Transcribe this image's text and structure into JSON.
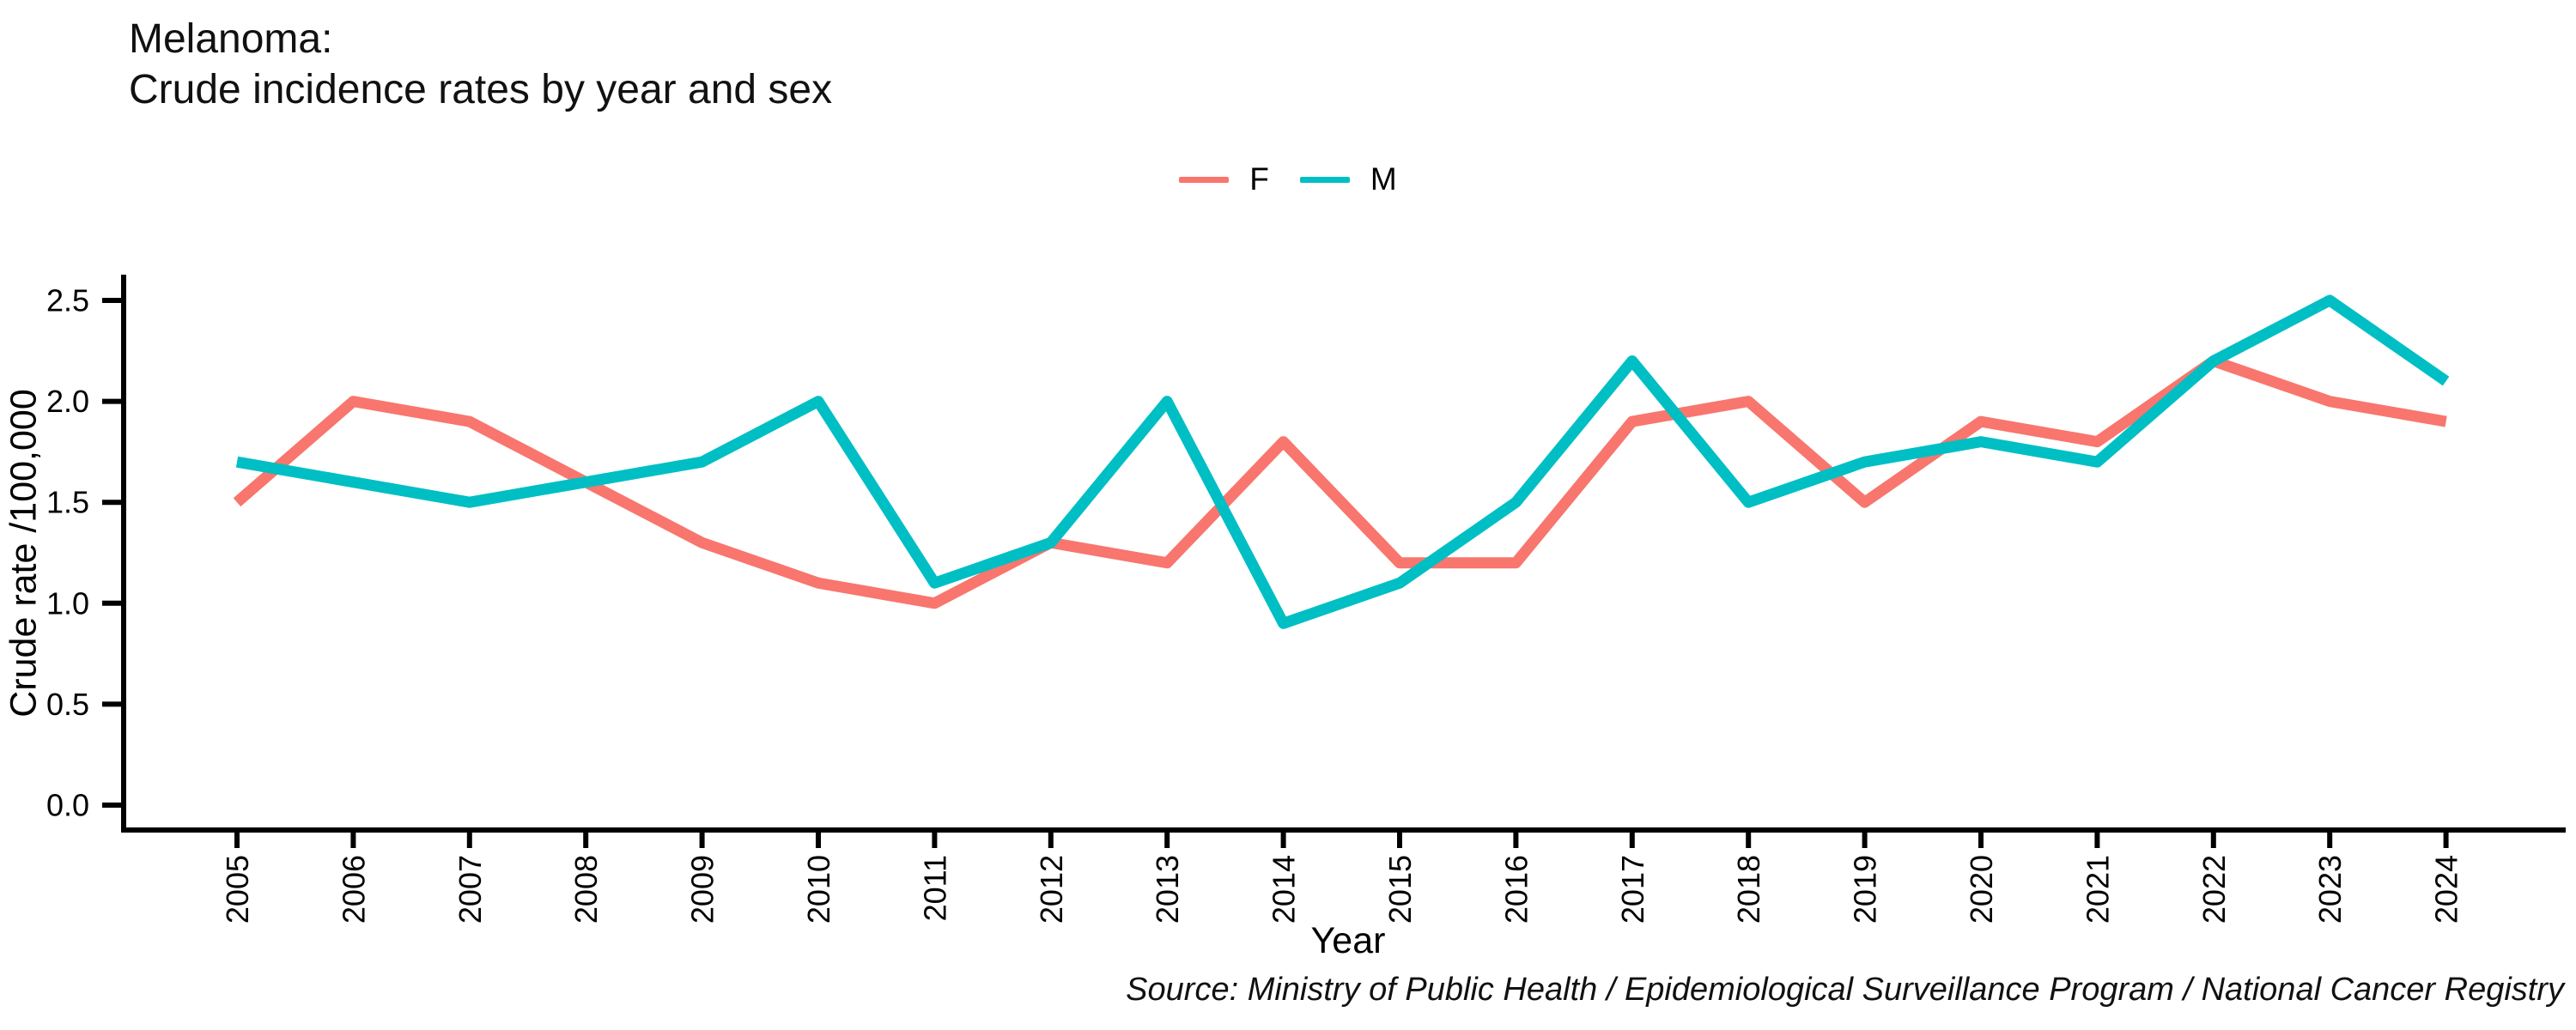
{
  "title": {
    "line1": "Melanoma:",
    "line2": "Crude incidence rates by year and sex"
  },
  "source": "Source: Ministry of Public Health / Epidemiological Surveillance Program / National Cancer Registry",
  "chart_data": {
    "type": "line",
    "title": "Melanoma: Crude incidence rates by year and sex",
    "xlabel": "Year",
    "ylabel": "Crude rate /100,000",
    "x": [
      2005,
      2006,
      2007,
      2008,
      2009,
      2010,
      2011,
      2012,
      2013,
      2014,
      2015,
      2016,
      2017,
      2018,
      2019,
      2020,
      2021,
      2022,
      2023,
      2024
    ],
    "series": [
      {
        "name": "F",
        "color": "#F8766D",
        "values": [
          1.5,
          2.0,
          1.9,
          1.6,
          1.3,
          1.1,
          1.0,
          1.3,
          1.2,
          1.8,
          1.2,
          1.2,
          1.9,
          2.0,
          1.5,
          1.9,
          1.8,
          2.2,
          2.0,
          1.9
        ]
      },
      {
        "name": "M",
        "color": "#00BFC4",
        "values": [
          1.7,
          1.6,
          1.5,
          1.6,
          1.7,
          2.0,
          1.1,
          1.3,
          2.0,
          0.9,
          1.1,
          1.5,
          2.2,
          1.5,
          1.7,
          1.8,
          1.7,
          2.2,
          2.5,
          2.1
        ]
      }
    ],
    "ylim": [
      0.0,
      2.5
    ],
    "y_ticks": [
      "0.0",
      "0.5",
      "1.0",
      "1.5",
      "2.0",
      "2.5"
    ],
    "x_tick_rotation": -90,
    "legend_position": "top-center",
    "grid": false,
    "axis_color": "#000000"
  }
}
